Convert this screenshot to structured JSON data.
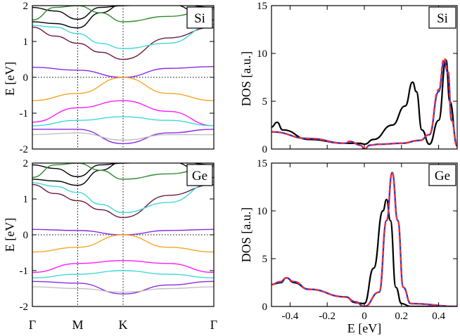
{
  "figure": {
    "band_ylabel": "E [eV]",
    "dos_ylabel": "DOS [a.u.]",
    "dos_xlabel": "E [eV]",
    "kpoints": [
      "Γ",
      "M",
      "K",
      "Γ"
    ]
  },
  "chart_data": [
    {
      "id": "bands_si",
      "type": "line",
      "material": "Si",
      "ylabel": "E [eV]",
      "ylim": [
        -2,
        2
      ],
      "yticks": [
        "2",
        "1",
        "0",
        "-1",
        "-2"
      ],
      "xticks": [
        "Γ",
        "M",
        "K",
        "Γ"
      ],
      "k": [
        0,
        0.5,
        1.0,
        2.0
      ],
      "series": [
        {
          "name": "black",
          "color": "#000000",
          "x": [
            0,
            0.25,
            0.5,
            0.75,
            1.0,
            1.5,
            2.0
          ],
          "values": [
            1.55,
            1.5,
            1.38,
            1.8,
            2.05,
            2.1,
            1.95
          ]
        },
        {
          "name": "black2",
          "color": "#000000",
          "x": [
            0,
            0.25,
            0.5,
            0.75,
            1.0,
            1.5,
            2.0
          ],
          "values": [
            1.95,
            1.85,
            1.62,
            1.95,
            2.0,
            2.05,
            1.6
          ]
        },
        {
          "name": "green",
          "color": "#2e8b2e",
          "x": [
            0,
            0.25,
            0.5,
            0.75,
            1.0,
            1.5,
            2.0
          ],
          "values": [
            1.6,
            1.95,
            2.0,
            1.8,
            1.55,
            1.7,
            1.9
          ]
        },
        {
          "name": "maroon",
          "color": "#6b1a3e",
          "x": [
            0,
            0.25,
            0.5,
            0.75,
            1.0,
            1.5,
            2.0
          ],
          "values": [
            1.4,
            1.15,
            0.95,
            0.7,
            0.5,
            1.1,
            1.4
          ]
        },
        {
          "name": "cyan",
          "color": "#3fd8d8",
          "x": [
            0,
            0.25,
            0.5,
            0.75,
            1.0,
            1.5,
            2.0
          ],
          "values": [
            1.45,
            1.4,
            1.22,
            0.95,
            0.8,
            0.95,
            1.48
          ]
        },
        {
          "name": "violet",
          "color": "#8a2be2",
          "x": [
            0,
            0.5,
            1.0,
            1.5,
            2.0
          ],
          "values": [
            0.28,
            0.2,
            0.0,
            0.25,
            0.3
          ]
        },
        {
          "name": "orange",
          "color": "#f5a623",
          "x": [
            0,
            0.5,
            1.0,
            1.5,
            2.0
          ],
          "values": [
            -0.65,
            -0.45,
            0.0,
            -0.45,
            -0.65
          ]
        },
        {
          "name": "magenta",
          "color": "#ff1aff",
          "x": [
            0,
            0.5,
            1.0,
            1.5,
            2.0
          ],
          "values": [
            -1.25,
            -0.85,
            -0.65,
            -0.95,
            -1.35
          ]
        },
        {
          "name": "cyan2",
          "color": "#3fd8d8",
          "x": [
            0,
            0.5,
            1.0,
            1.5,
            2.0
          ],
          "values": [
            -1.35,
            -1.2,
            -1.1,
            -1.2,
            -1.35
          ]
        },
        {
          "name": "purple2",
          "color": "#8a2be2",
          "x": [
            0,
            0.5,
            1.0,
            1.5,
            2.0
          ],
          "values": [
            -1.45,
            -1.45,
            -1.85,
            -1.55,
            -1.45
          ]
        },
        {
          "name": "gray",
          "color": "#c0c0c0",
          "x": [
            0,
            0.5,
            1.0,
            1.5,
            2.0
          ],
          "values": [
            -1.6,
            -1.55,
            -1.75,
            -1.6,
            -1.6
          ]
        }
      ]
    },
    {
      "id": "bands_ge",
      "type": "line",
      "material": "Ge",
      "ylabel": "E [eV]",
      "ylim": [
        -2,
        2
      ],
      "yticks": [
        "2",
        "1",
        "0",
        "-1",
        "-2"
      ],
      "xticks": [
        "Γ",
        "M",
        "K",
        "Γ"
      ],
      "k": [
        0,
        0.5,
        1.0,
        2.0
      ],
      "series": [
        {
          "name": "black",
          "color": "#000000",
          "x": [
            0,
            0.25,
            0.5,
            0.75,
            1.0,
            1.5,
            2.0
          ],
          "values": [
            1.55,
            1.5,
            1.38,
            1.8,
            2.05,
            2.1,
            1.95
          ]
        },
        {
          "name": "black2",
          "color": "#000000",
          "x": [
            0,
            0.25,
            0.5,
            0.75,
            1.0,
            1.5,
            2.0
          ],
          "values": [
            1.95,
            1.85,
            1.62,
            1.95,
            2.0,
            2.05,
            1.6
          ]
        },
        {
          "name": "green",
          "color": "#2e8b2e",
          "x": [
            0,
            0.25,
            0.5,
            0.75,
            1.0,
            1.5,
            2.0
          ],
          "values": [
            1.6,
            1.95,
            2.0,
            1.8,
            1.55,
            1.7,
            1.9
          ]
        },
        {
          "name": "maroon",
          "color": "#6b1a3e",
          "x": [
            0,
            0.25,
            0.5,
            0.75,
            1.0,
            1.5,
            2.0
          ],
          "values": [
            1.4,
            1.15,
            0.95,
            0.7,
            0.48,
            1.1,
            1.4
          ]
        },
        {
          "name": "cyan",
          "color": "#3fd8d8",
          "x": [
            0,
            0.25,
            0.5,
            0.75,
            1.0,
            1.5,
            2.0
          ],
          "values": [
            1.45,
            1.35,
            1.18,
            0.85,
            0.62,
            0.9,
            1.48
          ]
        },
        {
          "name": "violet",
          "color": "#8a2be2",
          "x": [
            0,
            0.5,
            1.0,
            1.5,
            2.0
          ],
          "values": [
            0.15,
            0.12,
            0.0,
            0.12,
            0.15
          ]
        },
        {
          "name": "orange",
          "color": "#f5a623",
          "x": [
            0,
            0.5,
            1.0,
            1.5,
            2.0
          ],
          "values": [
            -0.48,
            -0.35,
            0.0,
            -0.35,
            -0.48
          ]
        },
        {
          "name": "magenta",
          "color": "#ff1aff",
          "x": [
            0,
            0.5,
            1.0,
            1.5,
            2.0
          ],
          "values": [
            -1.05,
            -0.8,
            -0.72,
            -0.8,
            -1.05
          ]
        },
        {
          "name": "cyan2",
          "color": "#3fd8d8",
          "x": [
            0,
            0.5,
            1.0,
            1.5,
            2.0
          ],
          "values": [
            -1.2,
            -1.1,
            -1.0,
            -1.1,
            -1.2
          ]
        },
        {
          "name": "purple2",
          "color": "#8a2be2",
          "x": [
            0,
            0.5,
            1.0,
            1.5,
            2.0
          ],
          "values": [
            -1.3,
            -1.35,
            -1.65,
            -1.4,
            -1.3
          ]
        },
        {
          "name": "gray",
          "color": "#c0c0c0",
          "x": [
            0,
            0.5,
            1.0,
            1.5,
            2.0
          ],
          "values": [
            -1.45,
            -1.5,
            -1.6,
            -1.5,
            -1.45
          ]
        }
      ]
    },
    {
      "id": "dos_si",
      "type": "line",
      "material": "Si",
      "ylabel": "DOS [a.u.]",
      "xlim": [
        -0.5,
        0.5
      ],
      "ylim": [
        0,
        15
      ],
      "yticks": [
        "0",
        "5",
        "10",
        "15"
      ],
      "series": [
        {
          "name": "black",
          "color": "#000000",
          "x": [
            -0.5,
            -0.47,
            -0.44,
            -0.3,
            -0.1,
            -0.02,
            0.0,
            0.05,
            0.15,
            0.22,
            0.26,
            0.28,
            0.31,
            0.35,
            0.4,
            0.44,
            0.46,
            0.5
          ],
          "values": [
            2.3,
            2.8,
            2.0,
            1.0,
            0.6,
            0.6,
            0.5,
            1.0,
            2.5,
            4.5,
            7.0,
            6.0,
            2.0,
            0.5,
            3.0,
            9.3,
            5.0,
            0.3
          ]
        },
        {
          "name": "blue",
          "color": "#1f3bdb",
          "dashed": false,
          "x": [
            -0.5,
            -0.3,
            -0.1,
            -0.08,
            -0.02,
            0.0,
            0.03,
            0.08,
            0.2,
            0.3,
            0.35,
            0.4,
            0.43,
            0.45,
            0.47,
            0.5
          ],
          "values": [
            1.8,
            1.1,
            0.6,
            0.8,
            0.4,
            0.0,
            0.4,
            0.5,
            0.6,
            0.9,
            1.5,
            6.0,
            9.2,
            8.0,
            3.0,
            0.3
          ]
        },
        {
          "name": "red",
          "color": "#ff2b2b",
          "dashed": true,
          "x": [
            -0.5,
            -0.3,
            -0.1,
            -0.08,
            -0.02,
            0.0,
            0.03,
            0.08,
            0.2,
            0.3,
            0.35,
            0.4,
            0.43,
            0.45,
            0.47,
            0.5
          ],
          "values": [
            1.8,
            1.1,
            0.6,
            0.8,
            0.4,
            0.0,
            0.4,
            0.5,
            0.6,
            0.9,
            1.5,
            6.2,
            9.5,
            8.2,
            3.0,
            0.3
          ]
        }
      ]
    },
    {
      "id": "dos_ge",
      "type": "line",
      "material": "Ge",
      "ylabel": "DOS [a.u.]",
      "xlabel": "E [eV]",
      "xlim": [
        -0.5,
        0.5
      ],
      "ylim": [
        0,
        15
      ],
      "yticks": [
        "0",
        "5",
        "10",
        "15"
      ],
      "xticks": [
        "-0.4",
        "-0.2",
        "0",
        "0.2",
        "0.4"
      ],
      "series": [
        {
          "name": "black",
          "color": "#000000",
          "x": [
            -0.5,
            -0.45,
            -0.42,
            -0.38,
            -0.3,
            -0.1,
            -0.05,
            0.0,
            0.05,
            0.1,
            0.12,
            0.14,
            0.17,
            0.2,
            0.25,
            0.5
          ],
          "values": [
            2.3,
            2.5,
            3.0,
            2.5,
            1.8,
            1.0,
            0.4,
            0.3,
            4.0,
            10.0,
            11.2,
            9.0,
            2.0,
            0.3,
            0.0,
            0.0
          ]
        },
        {
          "name": "blue",
          "color": "#1f3bdb",
          "dashed": false,
          "x": [
            -0.5,
            -0.45,
            -0.42,
            -0.38,
            -0.3,
            -0.1,
            -0.05,
            0.0,
            0.08,
            0.12,
            0.15,
            0.18,
            0.21,
            0.25,
            0.5
          ],
          "values": [
            2.3,
            2.6,
            3.0,
            2.6,
            1.8,
            1.0,
            0.5,
            0.0,
            1.5,
            9.0,
            14.0,
            9.0,
            2.0,
            0.3,
            0.0
          ]
        },
        {
          "name": "red",
          "color": "#ff2b2b",
          "dashed": true,
          "x": [
            -0.5,
            -0.45,
            -0.42,
            -0.38,
            -0.3,
            -0.1,
            -0.05,
            0.0,
            0.08,
            0.12,
            0.15,
            0.18,
            0.21,
            0.25,
            0.5
          ],
          "values": [
            2.3,
            2.6,
            3.0,
            2.6,
            1.8,
            1.0,
            0.5,
            0.0,
            1.5,
            9.0,
            14.0,
            9.0,
            2.0,
            0.3,
            0.0
          ]
        }
      ]
    }
  ]
}
